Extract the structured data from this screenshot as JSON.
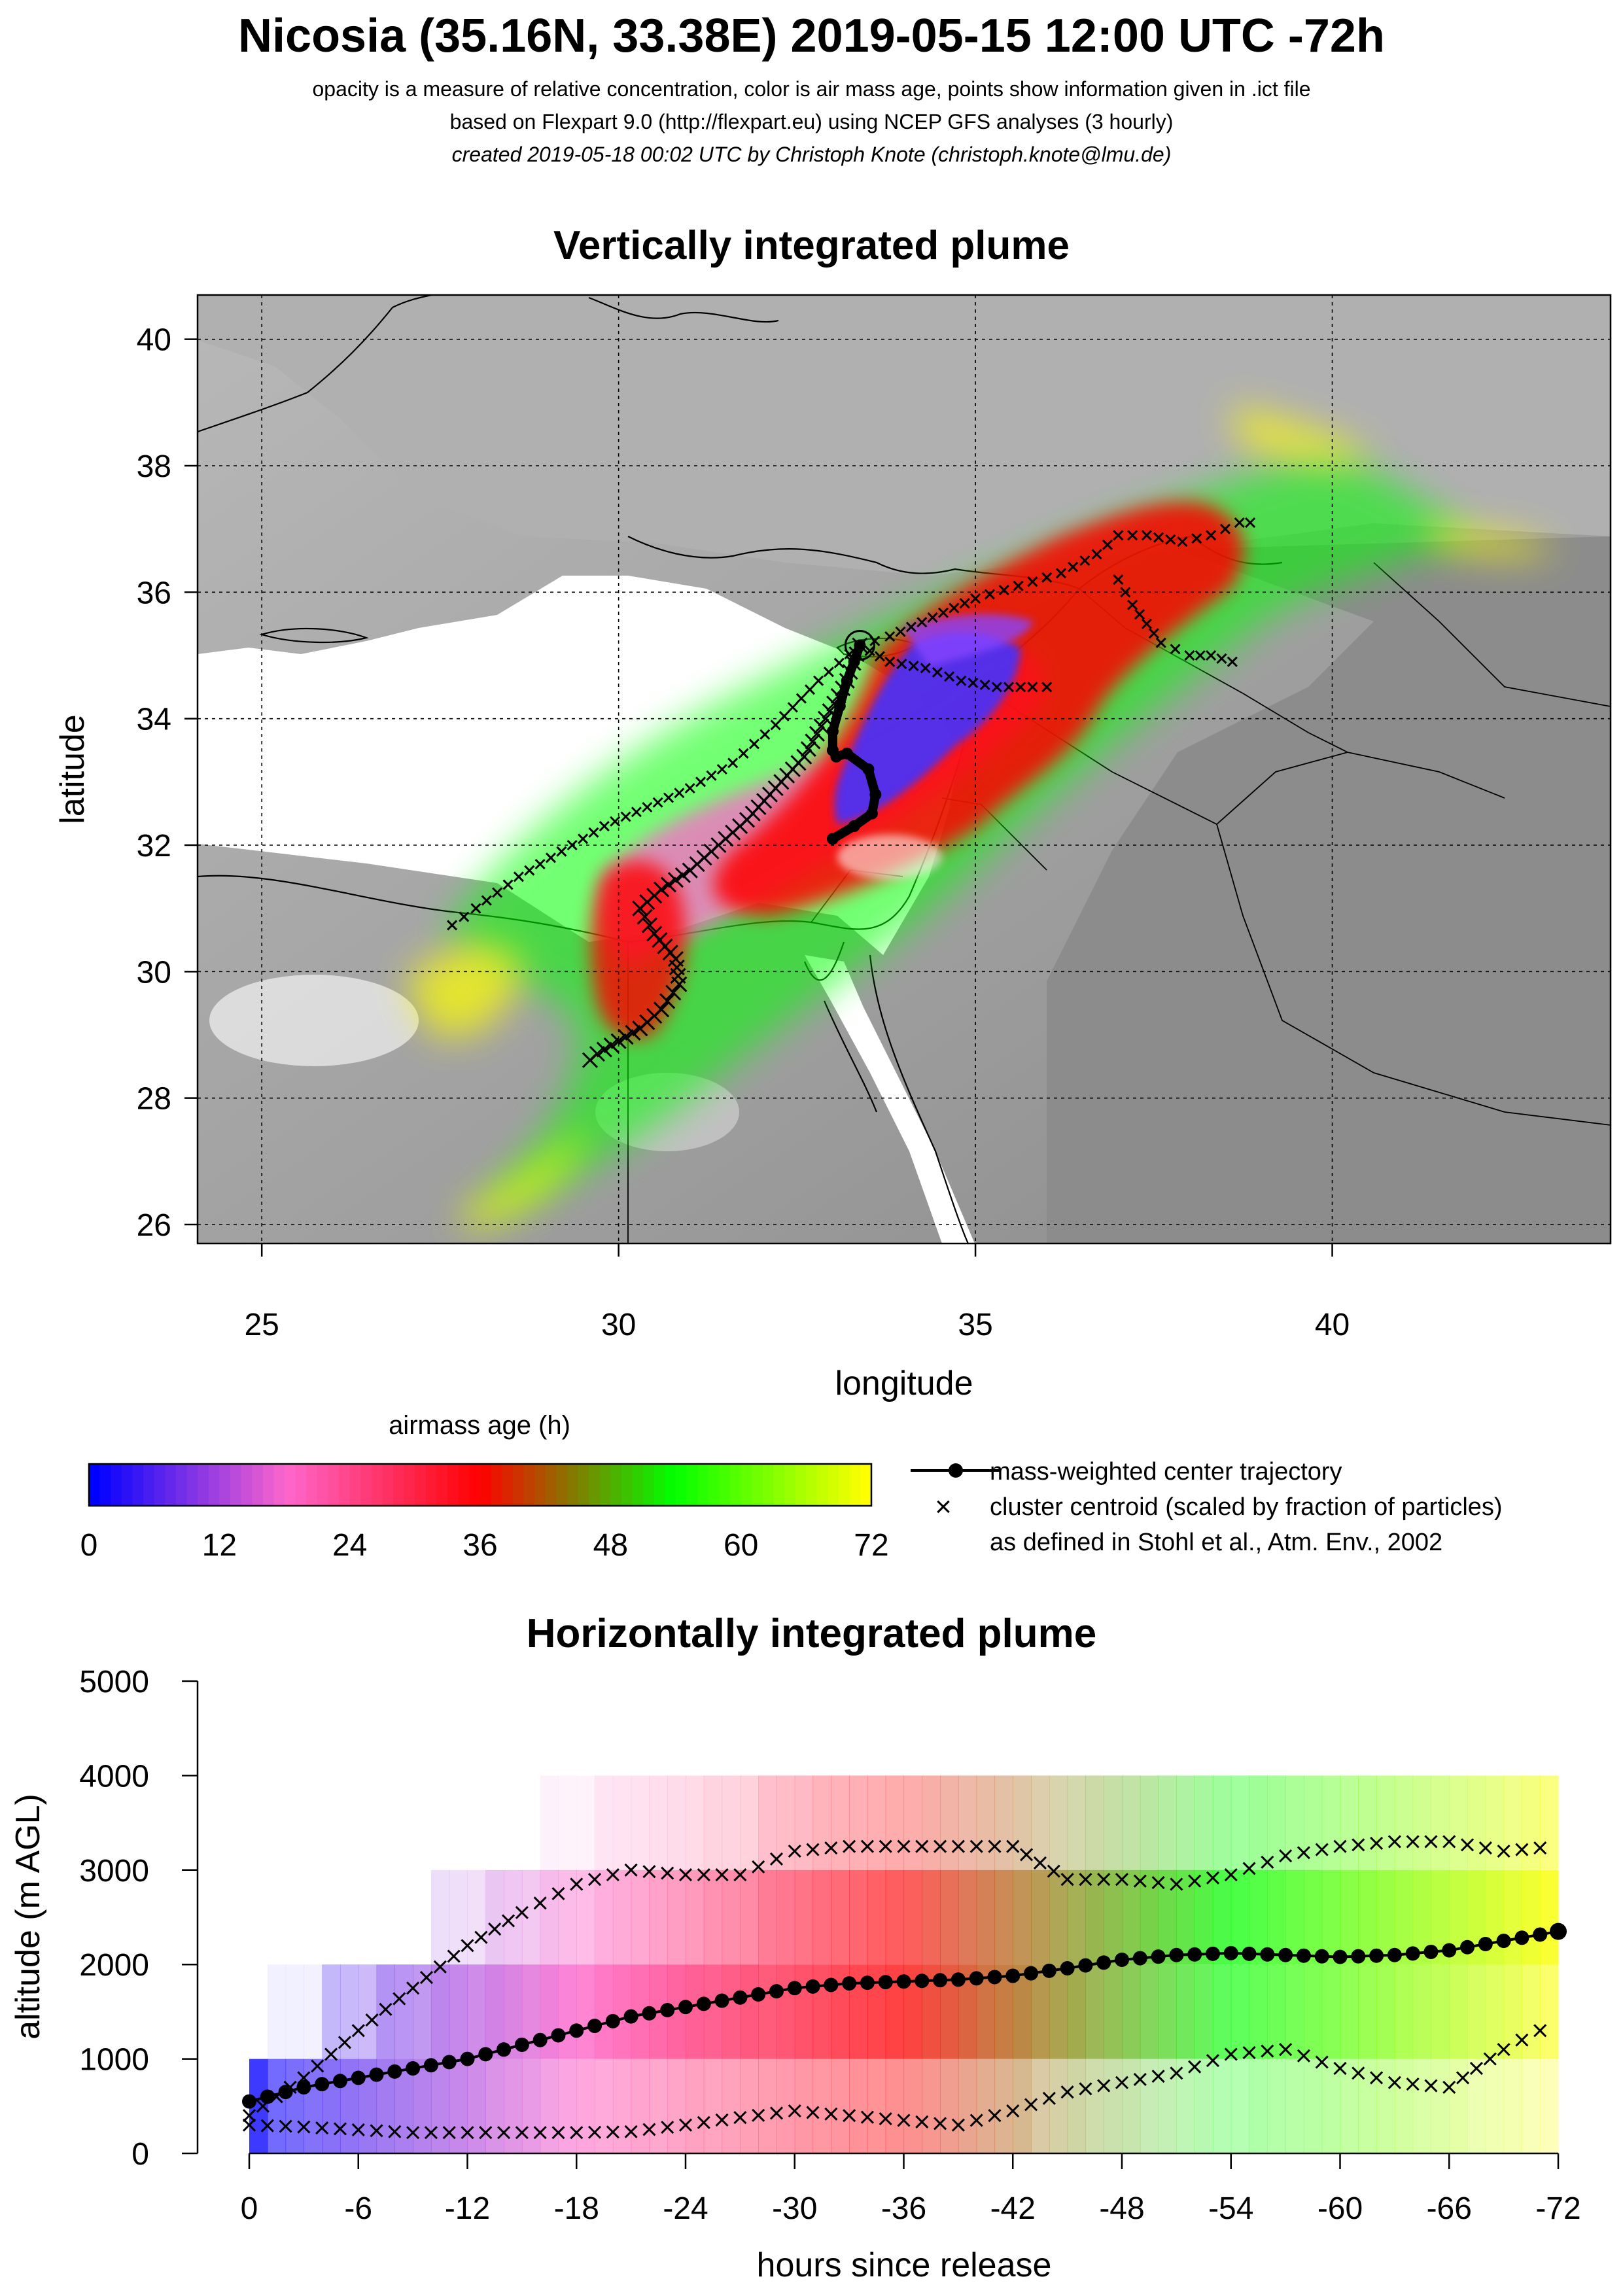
{
  "header": {
    "title": "Nicosia (35.16N, 33.38E) 2019-05-15 12:00 UTC -72h",
    "line1": "opacity is a measure of relative concentration, color is air mass age, points show information given in .ict file",
    "line2": "based on Flexpart 9.0 (http://flexpart.eu) using NCEP GFS analyses (3 hourly)",
    "line3": "created 2019-05-18 00:02 UTC by Christoph Knote (christoph.knote@lmu.de)"
  },
  "colors": {
    "age_ramp": [
      "#0000ff",
      "#ff66cc",
      "#ff0000",
      "#00ff00",
      "#ffff00"
    ],
    "land_gray": "#9a9a9a",
    "sea": "#ffffff",
    "trajectory": "#000000"
  },
  "map_panel": {
    "title": "Vertically integrated plume",
    "xlabel": "longitude",
    "ylabel": "latitude",
    "x_ticks": [
      "25",
      "30",
      "35",
      "40"
    ],
    "y_ticks": [
      "40",
      "38",
      "36",
      "34",
      "32",
      "30",
      "28",
      "26"
    ],
    "release_site": {
      "lon": 33.38,
      "lat": 35.16,
      "icon": "release-circle-icon"
    }
  },
  "legend": {
    "colorbar_label": "airmass age (h)",
    "colorbar_ticks": [
      "0",
      "12",
      "24",
      "36",
      "48",
      "60",
      "72"
    ],
    "item_center": "mass-weighted center trajectory",
    "item_cluster_1": "cluster centroid (scaled by fraction of particles)",
    "item_cluster_2": "as defined in Stohl et al., Atm. Env., 2002"
  },
  "profile_panel": {
    "title": "Horizontally integrated plume",
    "xlabel": "hours since release",
    "ylabel": "altitude (m AGL)",
    "x_ticks": [
      "0",
      "-6",
      "-12",
      "-18",
      "-24",
      "-30",
      "-36",
      "-42",
      "-48",
      "-54",
      "-60",
      "-66",
      "-72"
    ],
    "y_ticks": [
      "5000",
      "4000",
      "3000",
      "2000",
      "1000",
      "0"
    ]
  },
  "chart_data": [
    {
      "type": "scatter",
      "title": "Vertically integrated plume",
      "xlabel": "longitude",
      "ylabel": "latitude",
      "xlim": [
        24.1,
        43.9
      ],
      "ylim": [
        25.7,
        40.7
      ],
      "grid": true,
      "series": [
        {
          "name": "mass-weighted center trajectory",
          "x": [
            33.38,
            33.3,
            33.2,
            33.1,
            33.0,
            33.0,
            33.05,
            33.2,
            33.5,
            33.6,
            33.55,
            33.3,
            33.0
          ],
          "y": [
            35.16,
            34.9,
            34.6,
            34.2,
            33.8,
            33.5,
            33.4,
            33.45,
            33.2,
            32.8,
            32.5,
            32.3,
            32.1
          ]
        },
        {
          "name": "cluster centroid (scaled by fraction of particles)",
          "x": [
            33.38,
            33.2,
            32.9,
            32.6,
            32.2,
            31.8,
            31.4,
            31.0,
            30.6,
            30.3,
            30.5,
            30.8,
            30.85,
            30.6,
            30.3,
            30.0,
            29.7,
            29.5
          ],
          "y": [
            35.16,
            34.6,
            34.0,
            33.4,
            32.9,
            32.4,
            32.0,
            31.6,
            31.3,
            31.0,
            30.6,
            30.2,
            29.8,
            29.4,
            29.1,
            28.9,
            28.7,
            28.5
          ]
        },
        {
          "name": "cluster centroid (scaled by fraction of particles)",
          "x": [
            33.38,
            33.8,
            34.4,
            35.0,
            35.6,
            36.2,
            36.7,
            37.0,
            37.4,
            37.9,
            38.3,
            38.7,
            39.0
          ],
          "y": [
            35.16,
            35.3,
            35.6,
            35.9,
            36.1,
            36.3,
            36.6,
            36.9,
            36.9,
            36.8,
            36.9,
            37.1,
            37.1
          ]
        },
        {
          "name": "cluster centroid (scaled by fraction of particles)",
          "x": [
            33.38,
            33.8,
            34.3,
            34.8,
            35.3,
            35.8,
            36.2
          ],
          "y": [
            35.16,
            34.9,
            34.8,
            34.6,
            34.5,
            34.5,
            34.5
          ]
        },
        {
          "name": "cluster centroid (scaled by fraction of particles)",
          "x": [
            33.38,
            32.8,
            32.2,
            31.6,
            31.0,
            30.4,
            29.8,
            29.2,
            28.6,
            28.0,
            27.5
          ],
          "y": [
            35.16,
            34.6,
            33.9,
            33.3,
            32.9,
            32.6,
            32.3,
            31.9,
            31.5,
            31.0,
            30.6
          ]
        },
        {
          "name": "cluster centroid (scaled by fraction of particles)",
          "x": [
            37.0,
            37.2,
            37.4,
            37.6,
            37.8,
            38.0,
            38.3,
            38.6,
            38.8
          ],
          "y": [
            36.2,
            35.8,
            35.5,
            35.2,
            35.1,
            35.0,
            35.0,
            34.9,
            34.8
          ]
        }
      ]
    },
    {
      "type": "line",
      "title": "Horizontally integrated plume",
      "xlabel": "hours since release",
      "ylabel": "altitude (m AGL)",
      "xlim": [
        0,
        -72
      ],
      "ylim": [
        0,
        5000
      ],
      "grid": false,
      "series": [
        {
          "name": "mass-weighted center trajectory",
          "x": [
            0,
            -3,
            -6,
            -9,
            -12,
            -15,
            -18,
            -21,
            -24,
            -27,
            -30,
            -33,
            -36,
            -39,
            -42,
            -45,
            -48,
            -51,
            -54,
            -57,
            -60,
            -63,
            -66,
            -69,
            -72
          ],
          "y": [
            550,
            700,
            800,
            900,
            1000,
            1150,
            1300,
            1450,
            1550,
            1650,
            1750,
            1800,
            1820,
            1840,
            1880,
            1960,
            2050,
            2100,
            2120,
            2100,
            2080,
            2100,
            2150,
            2250,
            2350
          ]
        },
        {
          "name": "cluster centroid (scaled by fraction of particles)",
          "x": [
            0,
            -3,
            -6,
            -9,
            -12,
            -15,
            -18,
            -21,
            -24,
            -27,
            -30,
            -33,
            -36,
            -39,
            -42,
            -45,
            -48,
            -51,
            -54,
            -57,
            -60,
            -63,
            -66,
            -69,
            -72
          ],
          "y": [
            400,
            800,
            1300,
            1750,
            2200,
            2550,
            2850,
            3000,
            2950,
            2950,
            3200,
            3250,
            3250,
            3250,
            3250,
            2900,
            2900,
            2850,
            2950,
            3150,
            3250,
            3300,
            3300,
            3200,
            3250
          ]
        },
        {
          "name": "cluster centroid (scaled by fraction of particles)",
          "x": [
            0,
            -3,
            -6,
            -9,
            -12,
            -15,
            -18,
            -21,
            -24,
            -27,
            -30,
            -33,
            -36,
            -39,
            -42,
            -45,
            -48,
            -51,
            -54,
            -57,
            -60,
            -63,
            -66,
            -69,
            -72
          ],
          "y": [
            300,
            280,
            250,
            220,
            220,
            220,
            220,
            230,
            300,
            380,
            450,
            400,
            350,
            300,
            450,
            650,
            750,
            850,
            1050,
            1100,
            900,
            750,
            700,
            1100,
            1400
          ]
        }
      ]
    }
  ]
}
